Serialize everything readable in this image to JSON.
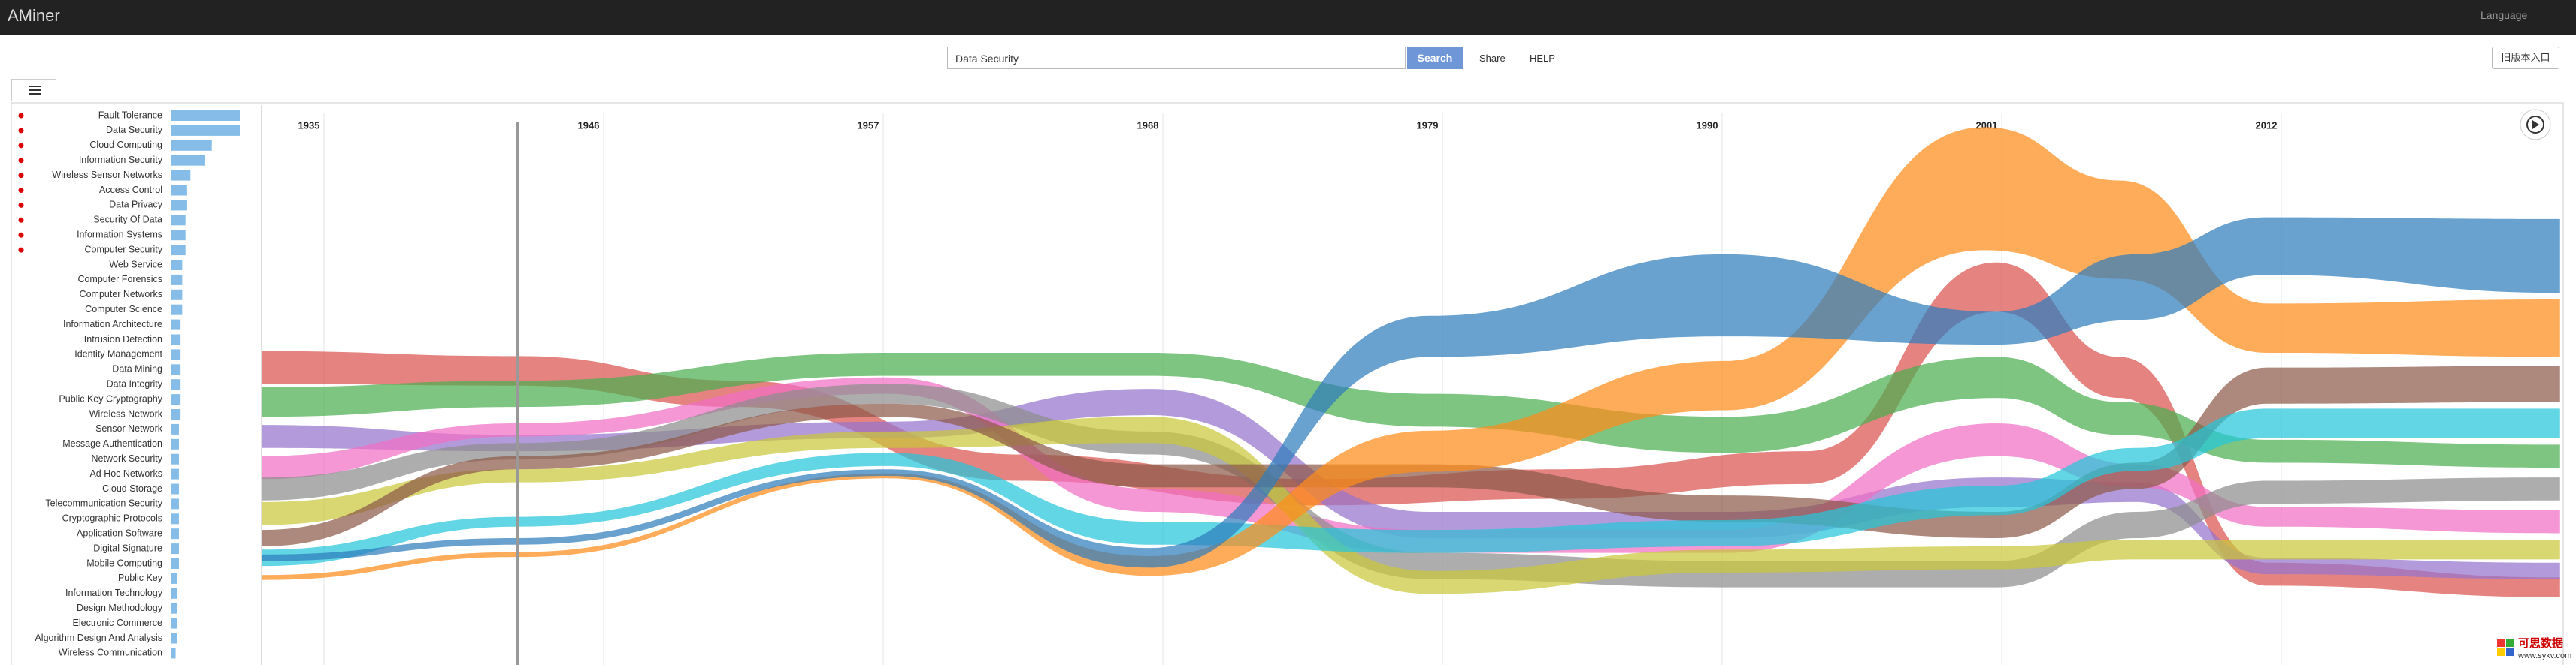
{
  "header": {
    "logo": "AMiner",
    "language": "Language"
  },
  "search": {
    "query": "Data Security",
    "button": "Search",
    "share": "Share",
    "help": "HELP",
    "old_version": "旧版本入口"
  },
  "topics": [
    {
      "label": "Fault Tolerance",
      "weight": 42
    },
    {
      "label": "Data Security",
      "weight": 42
    },
    {
      "label": "Cloud Computing",
      "weight": 25
    },
    {
      "label": "Information Security",
      "weight": 21
    },
    {
      "label": "Wireless Sensor Networks",
      "weight": 12
    },
    {
      "label": "Access Control",
      "weight": 10
    },
    {
      "label": "Data Privacy",
      "weight": 10
    },
    {
      "label": "Security Of Data",
      "weight": 9
    },
    {
      "label": "Information Systems",
      "weight": 9
    },
    {
      "label": "Computer Security",
      "weight": 9
    },
    {
      "label": "Web Service",
      "weight": 7
    },
    {
      "label": "Computer Forensics",
      "weight": 7
    },
    {
      "label": "Computer Networks",
      "weight": 7
    },
    {
      "label": "Computer Science",
      "weight": 7
    },
    {
      "label": "Information Architecture",
      "weight": 6
    },
    {
      "label": "Intrusion Detection",
      "weight": 6
    },
    {
      "label": "Identity Management",
      "weight": 6
    },
    {
      "label": "Data Mining",
      "weight": 6
    },
    {
      "label": "Data Integrity",
      "weight": 6
    },
    {
      "label": "Public Key Cryptography",
      "weight": 6
    },
    {
      "label": "Wireless Network",
      "weight": 6
    },
    {
      "label": "Sensor Network",
      "weight": 5
    },
    {
      "label": "Message Authentication",
      "weight": 5
    },
    {
      "label": "Network Security",
      "weight": 5
    },
    {
      "label": "Ad Hoc Networks",
      "weight": 5
    },
    {
      "label": "Cloud Storage",
      "weight": 5
    },
    {
      "label": "Telecommunication Security",
      "weight": 5
    },
    {
      "label": "Cryptographic Protocols",
      "weight": 5
    },
    {
      "label": "Application Software",
      "weight": 5
    },
    {
      "label": "Digital Signature",
      "weight": 5
    },
    {
      "label": "Mobile Computing",
      "weight": 5
    },
    {
      "label": "Public Key",
      "weight": 4
    },
    {
      "label": "Information Technology",
      "weight": 4
    },
    {
      "label": "Design Methodology",
      "weight": 4
    },
    {
      "label": "Electronic Commerce",
      "weight": 4
    },
    {
      "label": "Algorithm Design And Analysis",
      "weight": 4
    },
    {
      "label": "Wireless Communication",
      "weight": 3
    }
  ],
  "timeline": {
    "years": [
      "1935",
      "1946",
      "1957",
      "1968",
      "1979",
      "1990",
      "2001",
      "2012"
    ]
  },
  "watermark": {
    "name": "可思数据",
    "url": "www.sykv.com"
  }
}
